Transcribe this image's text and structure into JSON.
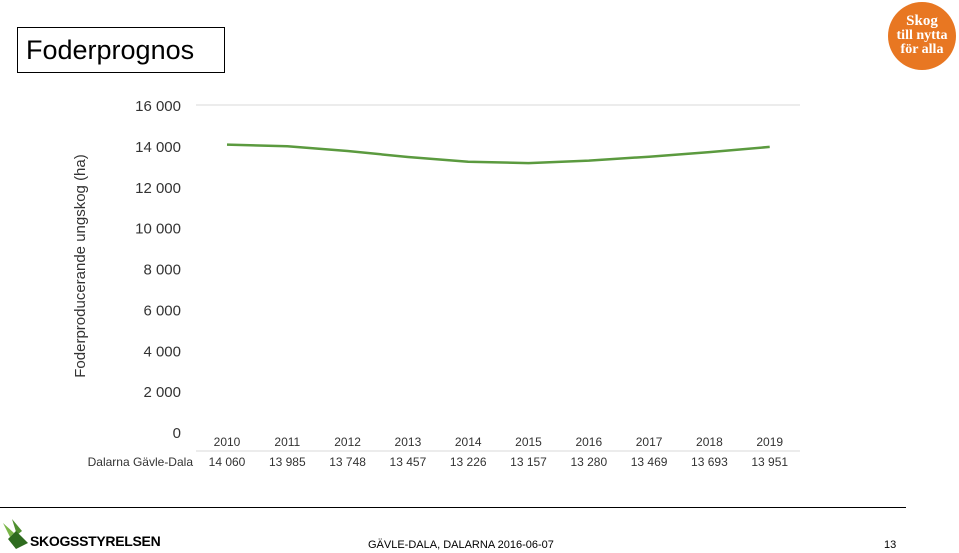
{
  "slide": {
    "title": "Foderprognos",
    "badge_lines": [
      "Skog",
      "till nytta",
      "för alla"
    ],
    "logo_text": "SKOGSSTYRELSEN",
    "footer_text": "GÄVLE-DALA, DALARNA  2016-06-07",
    "page_number": "13"
  },
  "chart_data": {
    "type": "line",
    "ylabel": "Foderproducerande ungskog (ha)",
    "xlabel": "",
    "ylim": [
      0,
      16000
    ],
    "y_ticks": [
      "0",
      "2 000",
      "4 000",
      "6 000",
      "8 000",
      "10 000",
      "12 000",
      "14 000",
      "16 000"
    ],
    "grid": "horizontal",
    "line_color": "#5b9a3f",
    "categories": [
      "2010",
      "2011",
      "2012",
      "2013",
      "2014",
      "2015",
      "2016",
      "2017",
      "2018",
      "2019"
    ],
    "series": [
      {
        "name": "Dalarna Gävle-Dala",
        "values": [
          14060,
          13985,
          13748,
          13457,
          13226,
          13157,
          13280,
          13469,
          13693,
          13951
        ],
        "labels": [
          "14 060",
          "13 985",
          "13 748",
          "13 457",
          "13 226",
          "13 157",
          "13 280",
          "13 469",
          "13 693",
          "13 951"
        ]
      }
    ]
  }
}
